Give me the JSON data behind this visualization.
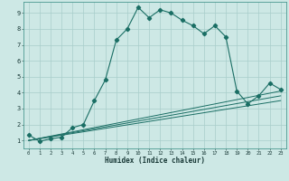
{
  "xlabel": "Humidex (Indice chaleur)",
  "xlim": [
    -0.5,
    23.5
  ],
  "ylim": [
    0.5,
    9.7
  ],
  "xticks": [
    0,
    1,
    2,
    3,
    4,
    5,
    6,
    7,
    8,
    9,
    10,
    11,
    12,
    13,
    14,
    15,
    16,
    17,
    18,
    19,
    20,
    21,
    22,
    23
  ],
  "yticks": [
    1,
    2,
    3,
    4,
    5,
    6,
    7,
    8,
    9
  ],
  "bg_color": "#cde8e5",
  "line_color": "#1a6e64",
  "grid_color": "#a8ceca",
  "main_line_x": [
    0,
    1,
    2,
    3,
    4,
    5,
    6,
    7,
    8,
    9,
    10,
    11,
    12,
    13,
    14,
    15,
    16,
    17,
    18,
    19,
    20,
    21,
    22,
    23
  ],
  "main_line_y": [
    1.35,
    0.95,
    1.1,
    1.2,
    1.8,
    2.0,
    3.5,
    4.8,
    7.3,
    8.0,
    9.35,
    8.7,
    9.2,
    9.0,
    8.55,
    8.2,
    7.7,
    8.2,
    7.5,
    4.1,
    3.3,
    3.8,
    4.6,
    4.2
  ],
  "ref_line1_x": [
    0,
    23
  ],
  "ref_line1_y": [
    1.0,
    3.5
  ],
  "ref_line2_x": [
    0,
    23
  ],
  "ref_line2_y": [
    1.0,
    3.8
  ],
  "ref_line3_x": [
    0,
    23
  ],
  "ref_line3_y": [
    1.0,
    4.1
  ]
}
